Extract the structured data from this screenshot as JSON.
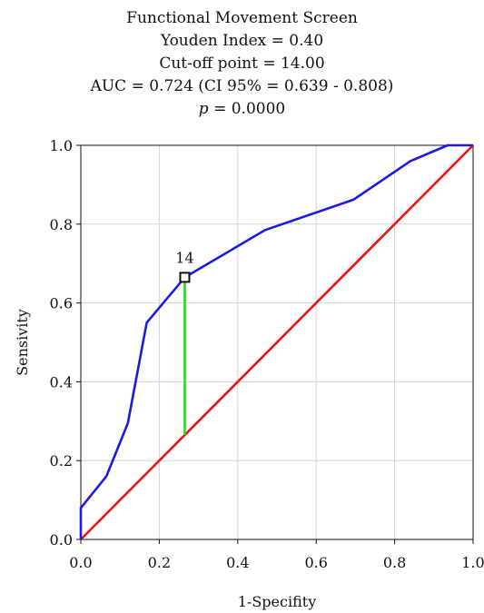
{
  "chart_data": {
    "type": "line",
    "title_lines": [
      "Functional Movement Screen",
      "Youden Index = 0.40",
      "Cut-off point = 14.00",
      "AUC = 0.724 (CI 95% = 0.639 - 0.808)"
    ],
    "p_symbol": "p",
    "p_value": "= 0.0000",
    "xlabel": "1-Specifity",
    "ylabel": "Sensivity",
    "xlim": [
      0.0,
      1.0
    ],
    "ylim": [
      0.0,
      1.0
    ],
    "xticks": [
      "0.0",
      "0.2",
      "0.4",
      "0.6",
      "0.8",
      "1.0"
    ],
    "yticks": [
      "0.0",
      "0.2",
      "0.4",
      "0.6",
      "0.8",
      "1.0"
    ],
    "grid": true,
    "series": [
      {
        "color": "#1a1ae6",
        "x": [
          0.0,
          0.0,
          0.065,
          0.12,
          0.168,
          0.265,
          0.47,
          0.695,
          0.84,
          0.935,
          1.0
        ],
        "y": [
          0.0,
          0.08,
          0.16,
          0.295,
          0.55,
          0.665,
          0.785,
          0.862,
          0.96,
          1.0,
          1.0
        ]
      },
      {
        "color": "#ee1111",
        "x": [
          0.0,
          1.0
        ],
        "y": [
          0.0,
          1.0
        ]
      }
    ],
    "youden_line": {
      "color": "#22dd22",
      "x": 0.265,
      "y_from": 0.265,
      "y_to": 0.665
    },
    "cutoff_marker": {
      "label": "14",
      "x": 0.265,
      "y": 0.665
    }
  }
}
